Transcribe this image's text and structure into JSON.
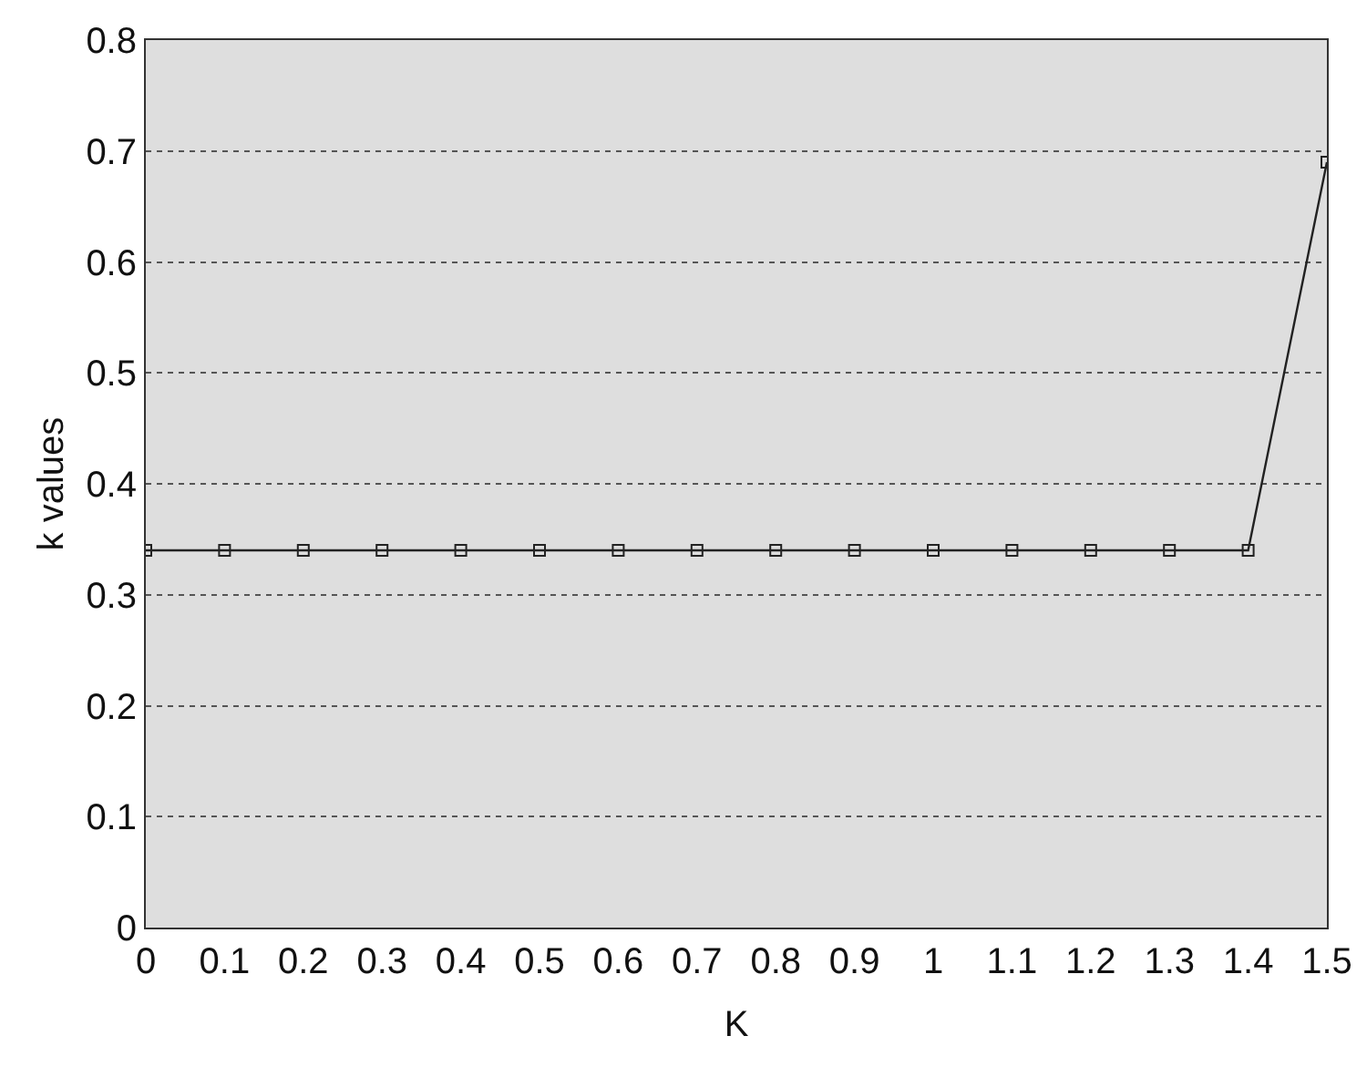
{
  "chart_data": {
    "type": "line",
    "xlabel": "K",
    "ylabel": "k values",
    "x": [
      0,
      0.1,
      0.2,
      0.3,
      0.4,
      0.5,
      0.6,
      0.7,
      0.8,
      0.9,
      1,
      1.1,
      1.2,
      1.3,
      1.4,
      1.5
    ],
    "series": [
      {
        "color": "#222222",
        "values": [
          0.34,
          0.34,
          0.34,
          0.34,
          0.34,
          0.34,
          0.34,
          0.34,
          0.34,
          0.34,
          0.34,
          0.34,
          0.34,
          0.34,
          0.34,
          0.69
        ]
      }
    ],
    "xlim": [
      0,
      1.5
    ],
    "xticks": [
      0,
      0.1,
      0.2,
      0.3,
      0.4,
      0.5,
      0.6,
      0.7,
      0.8,
      0.9,
      1,
      1.1,
      1.2,
      1.3,
      1.4,
      1.5
    ],
    "ylim": [
      0,
      0.8
    ],
    "yticks": [
      0,
      0.1,
      0.2,
      0.3,
      0.4,
      0.5,
      0.6,
      0.7,
      0.8
    ],
    "grid": "y",
    "marker": "square",
    "line_style": "solid"
  }
}
